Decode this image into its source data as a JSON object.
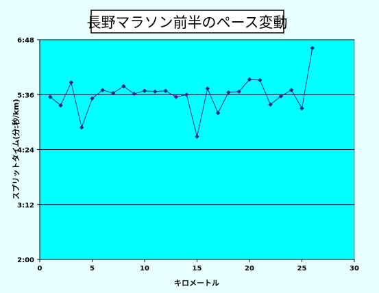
{
  "chart_data": {
    "type": "line",
    "title": "長野マラソン前半のペース変動",
    "xlabel": "キロメートル",
    "ylabel": "スプリットタイム(分:秒/km)",
    "xlim": [
      0,
      30
    ],
    "x_ticks": [
      "0",
      "5",
      "10",
      "15",
      "20",
      "25",
      "30"
    ],
    "ylim_seconds": [
      120,
      408
    ],
    "y_ticks": [
      "2:00",
      "3:12",
      "4:24",
      "5:36",
      "6:48"
    ],
    "grid": true,
    "legend": "none",
    "series": [
      {
        "x": [
          1,
          2,
          3,
          4,
          5,
          6,
          7,
          8,
          9,
          10,
          11,
          12,
          13,
          14,
          15,
          16,
          17,
          18,
          19,
          20,
          21,
          22,
          23,
          24,
          25,
          26
        ],
        "y": [
          "5:33",
          "5:22",
          "5:52",
          "4:53",
          "5:31",
          "5:42",
          "5:38",
          "5:47",
          "5:37",
          "5:41",
          "5:40",
          "5:41",
          "5:33",
          "5:36",
          "4:41",
          "5:44",
          "5:12",
          "5:39",
          "5:40",
          "5:56",
          "5:55",
          "5:23",
          "5:34",
          "5:42",
          "5:18",
          "6:37"
        ]
      }
    ]
  },
  "colors": {
    "page_background": "#e8ffff",
    "plot_background": "#00ffff",
    "series_color": "#1e2a8e",
    "grid_color": "#000000"
  }
}
